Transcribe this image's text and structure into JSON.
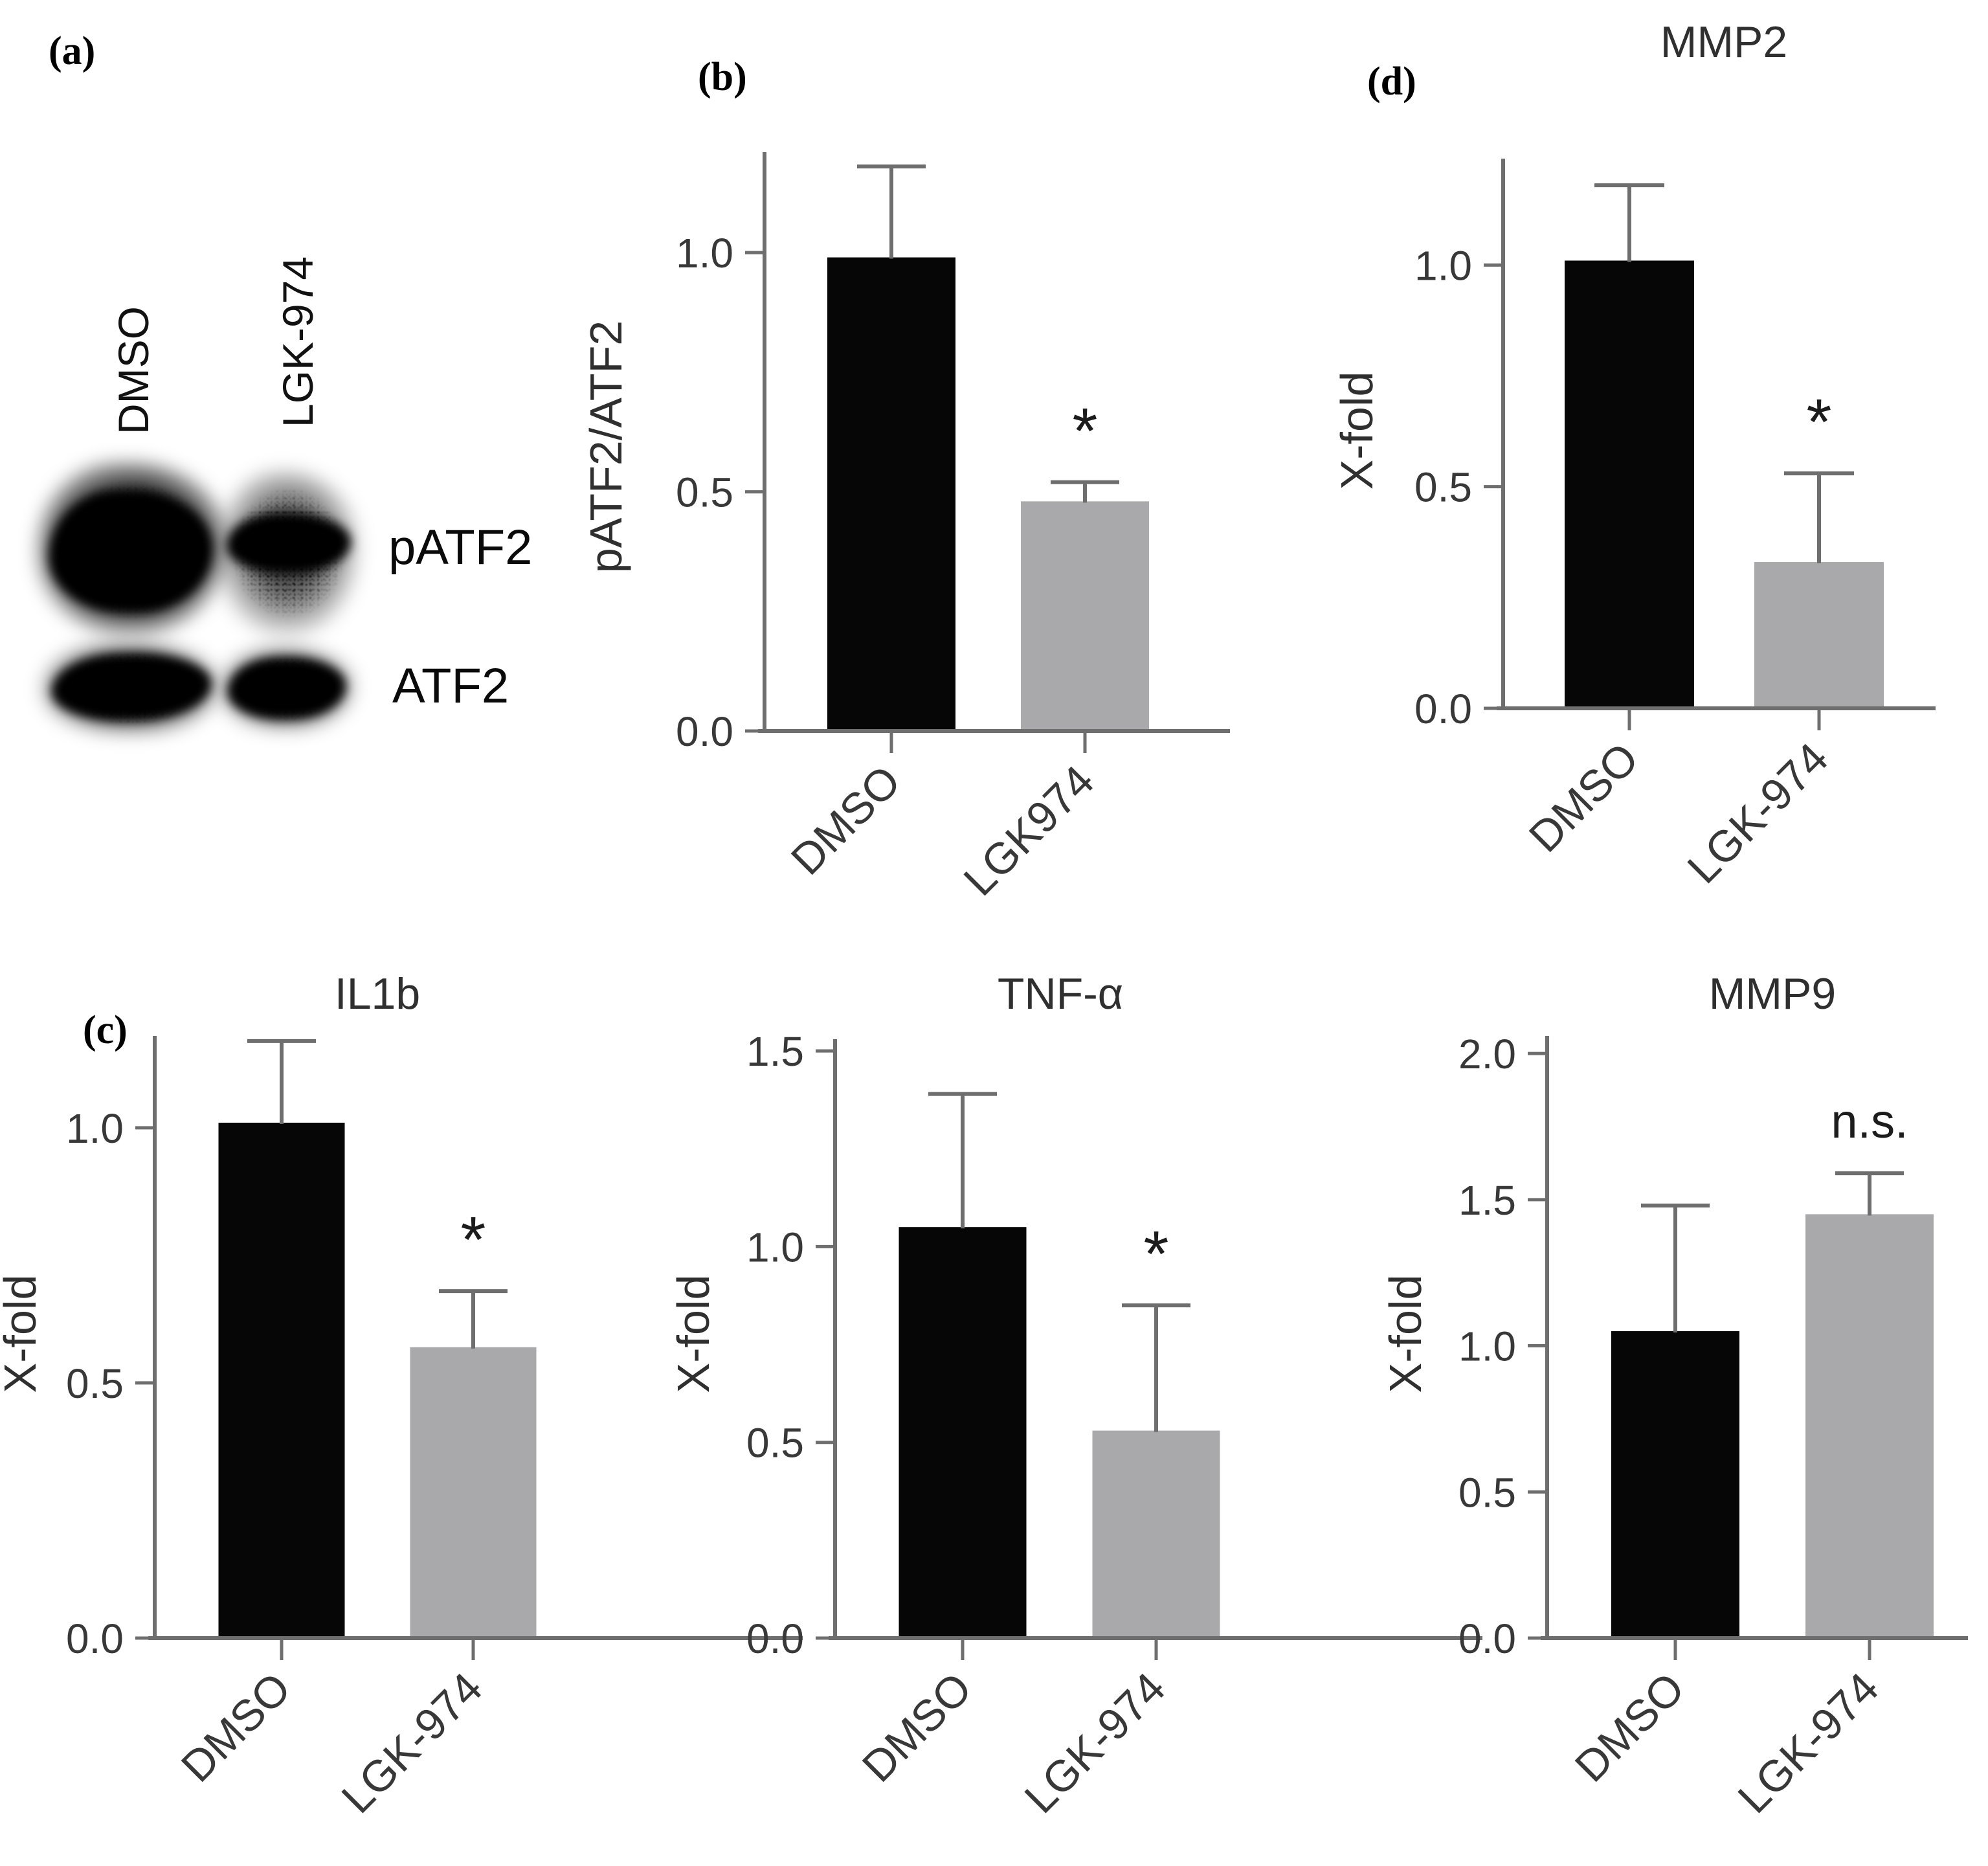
{
  "panel_labels": {
    "a": "(a)",
    "b": "(b)",
    "c": "(c)",
    "d": "(d)"
  },
  "blot": {
    "lane_labels": [
      "DMSO",
      "LGK-974"
    ],
    "band_labels": [
      "pATF2",
      "ATF2"
    ]
  },
  "colors": {
    "bar_black": "#060606",
    "bar_gray": "#a9a9ab",
    "axis": "#6e6e6e",
    "error_bar": "#6e6e6e",
    "tick_text": "#383838",
    "title_text": "#2f2f2f",
    "annotation_text": "#1c1c1c"
  },
  "chart_data": [
    {
      "id": "patf2_atf2",
      "panel": "b",
      "type": "bar",
      "title": "",
      "ylabel": "pATF2/ATF2",
      "categories": [
        "DMSO",
        "LGK974"
      ],
      "values": [
        0.99,
        0.48
      ],
      "errors_plus": [
        0.19,
        0.04
      ],
      "annotations": [
        "",
        "*"
      ],
      "yticks": [
        0.0,
        0.5,
        1.0
      ],
      "ylim": [
        0,
        1.21
      ],
      "bar_colors": [
        "black",
        "gray"
      ],
      "grid": false,
      "legend": false
    },
    {
      "id": "mmp2",
      "panel": "d",
      "type": "bar",
      "title": "MMP2",
      "ylabel": "X-fold",
      "categories": [
        "DMSO",
        "LGK-974"
      ],
      "values": [
        1.01,
        0.33
      ],
      "errors_plus": [
        0.17,
        0.2
      ],
      "annotations": [
        "",
        "*"
      ],
      "yticks": [
        0.0,
        0.5,
        1.0
      ],
      "ylim": [
        0,
        1.24
      ],
      "bar_colors": [
        "black",
        "gray"
      ],
      "grid": false,
      "legend": false
    },
    {
      "id": "il1b",
      "panel": "c",
      "type": "bar",
      "title": "IL1b",
      "ylabel": "X-fold",
      "categories": [
        "DMSO",
        "LGK-974"
      ],
      "values": [
        1.01,
        0.57
      ],
      "errors_plus": [
        0.16,
        0.11
      ],
      "annotations": [
        "",
        "*"
      ],
      "yticks": [
        0.0,
        0.5,
        1.0
      ],
      "ylim": [
        0,
        1.18
      ],
      "bar_colors": [
        "black",
        "gray"
      ],
      "grid": false,
      "legend": false
    },
    {
      "id": "tnfa",
      "panel": "",
      "type": "bar",
      "title": "TNF-α",
      "ylabel": "X-fold",
      "categories": [
        "DMSO",
        "LGK-974"
      ],
      "values": [
        1.05,
        0.53
      ],
      "errors_plus": [
        0.34,
        0.32
      ],
      "annotations": [
        "",
        "*"
      ],
      "yticks": [
        0.0,
        0.5,
        1.0,
        1.5
      ],
      "ylim": [
        0,
        1.53
      ],
      "bar_colors": [
        "black",
        "gray"
      ],
      "grid": false,
      "legend": false
    },
    {
      "id": "mmp9",
      "panel": "",
      "type": "bar",
      "title": "MMP9",
      "ylabel": "X-fold",
      "categories": [
        "DMSO",
        "LGK-974"
      ],
      "values": [
        1.05,
        1.45
      ],
      "errors_plus": [
        0.43,
        0.14
      ],
      "annotations": [
        "",
        "n.s."
      ],
      "yticks": [
        0.0,
        0.5,
        1.0,
        1.5,
        2.0
      ],
      "ylim": [
        0,
        2.06
      ],
      "bar_colors": [
        "black",
        "gray"
      ],
      "grid": false,
      "legend": false
    }
  ]
}
